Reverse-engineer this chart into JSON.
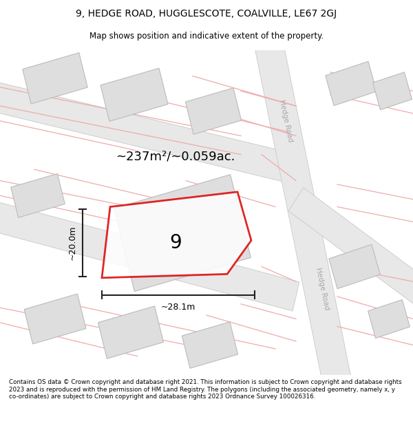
{
  "title_line1": "9, HEDGE ROAD, HUGGLESCOTE, COALVILLE, LE67 2GJ",
  "title_line2": "Map shows position and indicative extent of the property.",
  "footer": "Contains OS data © Crown copyright and database right 2021. This information is subject to Crown copyright and database rights 2023 and is reproduced with the permission of HM Land Registry. The polygons (including the associated geometry, namely x, y co-ordinates) are subject to Crown copyright and database rights 2023 Ordnance Survey 100026316.",
  "area_text": "~237m²/~0.059ac.",
  "width_text": "~28.1m",
  "height_text": "~20.0m",
  "property_number": "9",
  "road_fill": "#e8e8e8",
  "road_stroke": "#c8c8c8",
  "pink_line": "#f0aaaa",
  "red_polygon": "#dd0000",
  "building_fill": "#dedede",
  "building_stroke": "#bbbbbb",
  "road_label_color": "#aaaaaa",
  "dim_line_color": "#222222"
}
